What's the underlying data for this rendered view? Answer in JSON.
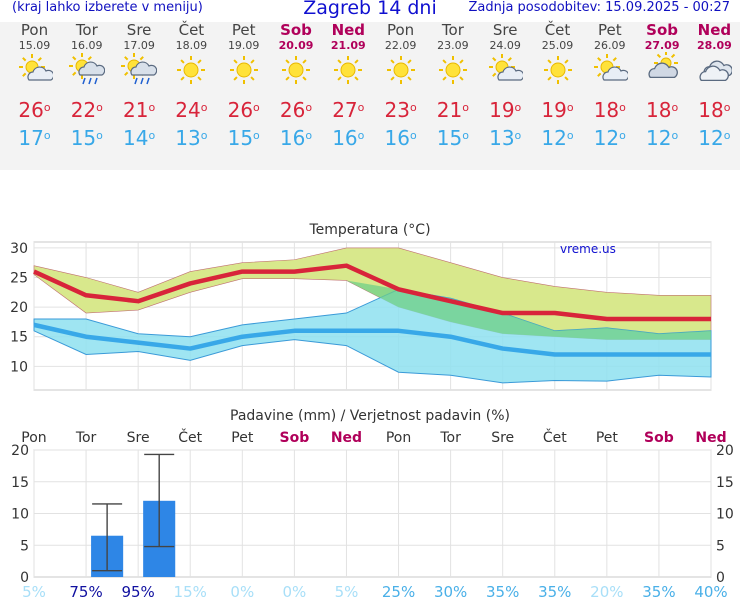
{
  "header": {
    "left_note": "(kraj lahko izberete v meniju)",
    "title": "Zagreb 14 dni",
    "updated": "Zadnja posodobitev: 15.09.2025 - 00:27"
  },
  "days": [
    {
      "name": "Pon",
      "date": "15.09",
      "weekend": false,
      "icon": "partly-sunny-icon",
      "max": "26",
      "min": "17"
    },
    {
      "name": "Tor",
      "date": "16.09",
      "weekend": false,
      "icon": "sun-rain-icon",
      "max": "22",
      "min": "15"
    },
    {
      "name": "Sre",
      "date": "17.09",
      "weekend": false,
      "icon": "sun-rain-icon",
      "max": "21",
      "min": "14"
    },
    {
      "name": "Čet",
      "date": "18.09",
      "weekend": false,
      "icon": "sun-icon",
      "max": "24",
      "min": "13"
    },
    {
      "name": "Pet",
      "date": "19.09",
      "weekend": false,
      "icon": "sun-icon",
      "max": "26",
      "min": "15"
    },
    {
      "name": "Sob",
      "date": "20.09",
      "weekend": true,
      "icon": "sun-icon",
      "max": "26",
      "min": "16"
    },
    {
      "name": "Ned",
      "date": "21.09",
      "weekend": true,
      "icon": "sun-icon",
      "max": "27",
      "min": "16"
    },
    {
      "name": "Pon",
      "date": "22.09",
      "weekend": false,
      "icon": "sun-icon",
      "max": "23",
      "min": "16"
    },
    {
      "name": "Tor",
      "date": "23.09",
      "weekend": false,
      "icon": "sun-icon",
      "max": "21",
      "min": "15"
    },
    {
      "name": "Sre",
      "date": "24.09",
      "weekend": false,
      "icon": "partly-sunny-icon",
      "max": "19",
      "min": "13"
    },
    {
      "name": "Čet",
      "date": "25.09",
      "weekend": false,
      "icon": "sun-icon",
      "max": "19",
      "min": "12"
    },
    {
      "name": "Pet",
      "date": "26.09",
      "weekend": false,
      "icon": "partly-sunny-icon",
      "max": "18",
      "min": "12"
    },
    {
      "name": "Sob",
      "date": "27.09",
      "weekend": true,
      "icon": "cloudy-icon",
      "max": "18",
      "min": "12"
    },
    {
      "name": "Ned",
      "date": "28.09",
      "weekend": true,
      "icon": "cloud-icon",
      "max": "18",
      "min": "12"
    }
  ],
  "colors": {
    "max": "#d8243a",
    "min": "#38a8e8",
    "weekend": "#b0005a",
    "max_band": "#d8e88c",
    "min_band": "#8ee0f0",
    "overlap_band": "#70d088",
    "bar": "#2e86e6",
    "prob_low": "#a8dff8",
    "prob_mid": "#4ab0e8",
    "prob_high": "#1010a0"
  },
  "chart_data": [
    {
      "type": "line",
      "title": "Temperatura (°C)",
      "watermark": "vreme.us",
      "categories": [
        "Pon",
        "Tor",
        "Sre",
        "Čet",
        "Pet",
        "Sob",
        "Ned",
        "Pon",
        "Tor",
        "Sre",
        "Čet",
        "Pet",
        "Sob",
        "Ned"
      ],
      "ylim": [
        6,
        31
      ],
      "yticks": [
        10,
        15,
        20,
        25,
        30
      ],
      "grid": true,
      "series": [
        {
          "kind": "max",
          "values": [
            26,
            22,
            21,
            24,
            26,
            26,
            27,
            23,
            21,
            19,
            19,
            18,
            18,
            18
          ]
        },
        {
          "kind": "min",
          "values": [
            17,
            15,
            14,
            13,
            15,
            16,
            16,
            16,
            15,
            13,
            12,
            12,
            12,
            12
          ]
        }
      ],
      "bands": [
        {
          "kind": "max",
          "upper": [
            27,
            25,
            22.5,
            26,
            27.5,
            28,
            30,
            30,
            27.5,
            25,
            23.5,
            22.5,
            22,
            22
          ],
          "lower": [
            25.5,
            19,
            19.5,
            22.5,
            24.8,
            24.8,
            24.5,
            20,
            17.5,
            15.5,
            15,
            14.5,
            14.5,
            14.5
          ]
        },
        {
          "kind": "min",
          "upper": [
            18,
            18,
            15.5,
            15,
            17,
            18,
            19,
            23,
            21.5,
            19,
            16,
            16.5,
            15.5,
            16
          ],
          "lower": [
            16,
            12,
            12.5,
            11,
            13.5,
            14.5,
            13.5,
            9,
            8.5,
            7.2,
            7.6,
            7.5,
            8.5,
            8.2
          ]
        }
      ]
    },
    {
      "type": "bar",
      "title": "Padavine (mm) / Verjetnost padavin (%)",
      "categories": [
        "Pon",
        "Tor",
        "Sre",
        "Čet",
        "Pet",
        "Sob",
        "Ned",
        "Pon",
        "Tor",
        "Sre",
        "Čet",
        "Pet",
        "Sob",
        "Ned"
      ],
      "ylim": [
        0,
        20
      ],
      "yticks": [
        0,
        5,
        10,
        15,
        20
      ],
      "grid": true,
      "series": [
        {
          "values": [
            0,
            6.5,
            12,
            0,
            0,
            0,
            0,
            0,
            0,
            0,
            0,
            0,
            0,
            0
          ]
        }
      ],
      "error_range": [
        null,
        [
          1,
          11.5
        ],
        [
          4.8,
          19.3
        ],
        null,
        null,
        null,
        null,
        null,
        null,
        null,
        null,
        null,
        null,
        null
      ],
      "probability": [
        "5%",
        "75%",
        "95%",
        "15%",
        "0%",
        "0%",
        "5%",
        "25%",
        "30%",
        "35%",
        "35%",
        "20%",
        "35%",
        "40%"
      ]
    }
  ]
}
